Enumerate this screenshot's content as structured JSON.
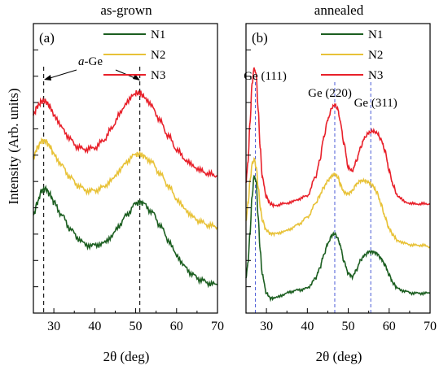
{
  "chart_data": [
    {
      "type": "line",
      "title": "as-grown",
      "panel_label": "(a)",
      "xlabel": "2θ (deg)",
      "ylabel": "Intensity (Arb. units)",
      "xlim": [
        25,
        70
      ],
      "xticks": [
        "30",
        "40",
        "50",
        "60",
        "70"
      ],
      "y_ticks_labeled": false,
      "legend": "top-right",
      "annotation": {
        "prefix": "a",
        "suffix": "-Ge"
      },
      "reference_lines": [
        27.5,
        51
      ],
      "series": [
        {
          "name": "N1",
          "color": "#1b5e20",
          "offset": 0.05,
          "x": [
            25,
            26,
            27,
            28,
            29,
            30,
            32,
            34,
            36,
            38,
            40,
            42,
            44,
            46,
            48,
            50,
            51,
            52,
            54,
            56,
            58,
            60,
            62,
            64,
            66,
            68,
            70
          ],
          "y": [
            0.48,
            0.56,
            0.63,
            0.64,
            0.61,
            0.56,
            0.48,
            0.4,
            0.34,
            0.3,
            0.3,
            0.31,
            0.35,
            0.42,
            0.49,
            0.55,
            0.56,
            0.55,
            0.5,
            0.42,
            0.33,
            0.24,
            0.17,
            0.12,
            0.09,
            0.07,
            0.06
          ]
        },
        {
          "name": "N2",
          "color": "#e8c238",
          "offset": 0.38,
          "x": [
            25,
            26,
            27,
            28,
            29,
            30,
            32,
            34,
            36,
            38,
            40,
            42,
            44,
            46,
            48,
            50,
            51,
            52,
            54,
            56,
            58,
            60,
            62,
            64,
            66,
            68,
            70
          ],
          "y": [
            0.5,
            0.56,
            0.6,
            0.6,
            0.57,
            0.52,
            0.45,
            0.38,
            0.33,
            0.3,
            0.3,
            0.32,
            0.36,
            0.42,
            0.48,
            0.52,
            0.52,
            0.51,
            0.47,
            0.4,
            0.33,
            0.25,
            0.19,
            0.14,
            0.11,
            0.09,
            0.08
          ]
        },
        {
          "name": "N3",
          "color": "#e8202a",
          "offset": 0.72,
          "x": [
            25,
            26,
            27,
            28,
            29,
            30,
            32,
            34,
            36,
            38,
            40,
            42,
            44,
            46,
            48,
            50,
            51,
            52,
            54,
            56,
            58,
            60,
            62,
            64,
            66,
            68,
            70
          ],
          "y": [
            0.42,
            0.47,
            0.5,
            0.5,
            0.47,
            0.42,
            0.34,
            0.27,
            0.22,
            0.21,
            0.22,
            0.26,
            0.33,
            0.42,
            0.5,
            0.55,
            0.55,
            0.53,
            0.47,
            0.38,
            0.29,
            0.21,
            0.15,
            0.11,
            0.08,
            0.06,
            0.05
          ]
        }
      ]
    },
    {
      "type": "line",
      "title": "annealed",
      "panel_label": "(b)",
      "xlabel": "2θ (deg)",
      "ylabel": "",
      "xlim": [
        25,
        70
      ],
      "xticks": [
        "30",
        "40",
        "50",
        "60",
        "70"
      ],
      "y_ticks_labeled": false,
      "legend": "top-right",
      "reference_lines": [
        27.3,
        46.7,
        55.5
      ],
      "peak_labels": [
        {
          "text": "Ge (111)",
          "x": 27.3
        },
        {
          "text": "Ge (220)",
          "x": 46.7
        },
        {
          "text": "Ge (311)",
          "x": 55.5
        }
      ],
      "series": [
        {
          "name": "N1",
          "color": "#1b5e20",
          "offset": 0.03,
          "x": [
            25,
            25.5,
            26,
            26.5,
            27,
            27.5,
            28,
            28.5,
            29,
            30,
            31,
            32,
            34,
            36,
            38,
            40,
            42,
            43,
            44,
            45,
            46,
            46.7,
            47.5,
            48,
            49,
            50,
            51,
            52,
            53,
            54,
            55,
            56,
            57,
            58,
            59,
            60,
            61,
            62,
            64,
            66,
            68,
            70
          ],
          "y": [
            0.12,
            0.22,
            0.4,
            0.62,
            0.74,
            0.7,
            0.48,
            0.28,
            0.14,
            0.03,
            0.0,
            0.0,
            0.02,
            0.04,
            0.05,
            0.06,
            0.12,
            0.18,
            0.26,
            0.33,
            0.38,
            0.39,
            0.36,
            0.32,
            0.22,
            0.15,
            0.13,
            0.17,
            0.23,
            0.26,
            0.28,
            0.28,
            0.27,
            0.24,
            0.2,
            0.14,
            0.09,
            0.06,
            0.04,
            0.03,
            0.03,
            0.03
          ]
        },
        {
          "name": "N2",
          "color": "#e8c238",
          "offset": 0.3,
          "x": [
            25,
            25.5,
            26,
            26.5,
            27,
            27.5,
            28,
            28.5,
            29,
            30,
            31,
            32,
            34,
            36,
            38,
            40,
            42,
            43,
            44,
            45,
            46,
            46.7,
            47.5,
            48,
            49,
            50,
            51,
            52,
            53,
            54,
            55,
            56,
            57,
            58,
            59,
            60,
            61,
            62,
            64,
            66,
            68,
            70
          ],
          "y": [
            0.2,
            0.3,
            0.44,
            0.54,
            0.57,
            0.52,
            0.4,
            0.28,
            0.2,
            0.14,
            0.12,
            0.12,
            0.13,
            0.15,
            0.18,
            0.22,
            0.3,
            0.35,
            0.4,
            0.44,
            0.47,
            0.48,
            0.46,
            0.42,
            0.37,
            0.36,
            0.38,
            0.42,
            0.44,
            0.44,
            0.43,
            0.41,
            0.37,
            0.3,
            0.22,
            0.15,
            0.11,
            0.08,
            0.06,
            0.05,
            0.05,
            0.04
          ]
        },
        {
          "name": "N3",
          "color": "#e8202a",
          "offset": 0.58,
          "x": [
            25,
            25.5,
            26,
            26.5,
            27,
            27.5,
            28,
            28.5,
            29,
            30,
            31,
            32,
            34,
            36,
            38,
            40,
            42,
            43,
            44,
            45,
            46,
            46.7,
            47.5,
            48,
            49,
            50,
            51,
            52,
            53,
            54,
            55,
            56,
            57,
            58,
            59,
            60,
            61,
            62,
            64,
            66,
            68,
            70
          ],
          "y": [
            0.15,
            0.28,
            0.52,
            0.75,
            0.84,
            0.8,
            0.58,
            0.35,
            0.18,
            0.06,
            0.02,
            0.01,
            0.02,
            0.03,
            0.05,
            0.07,
            0.18,
            0.28,
            0.42,
            0.53,
            0.6,
            0.62,
            0.59,
            0.52,
            0.38,
            0.24,
            0.22,
            0.28,
            0.36,
            0.42,
            0.45,
            0.46,
            0.45,
            0.41,
            0.34,
            0.22,
            0.13,
            0.07,
            0.03,
            0.02,
            0.02,
            0.02
          ]
        }
      ]
    }
  ]
}
